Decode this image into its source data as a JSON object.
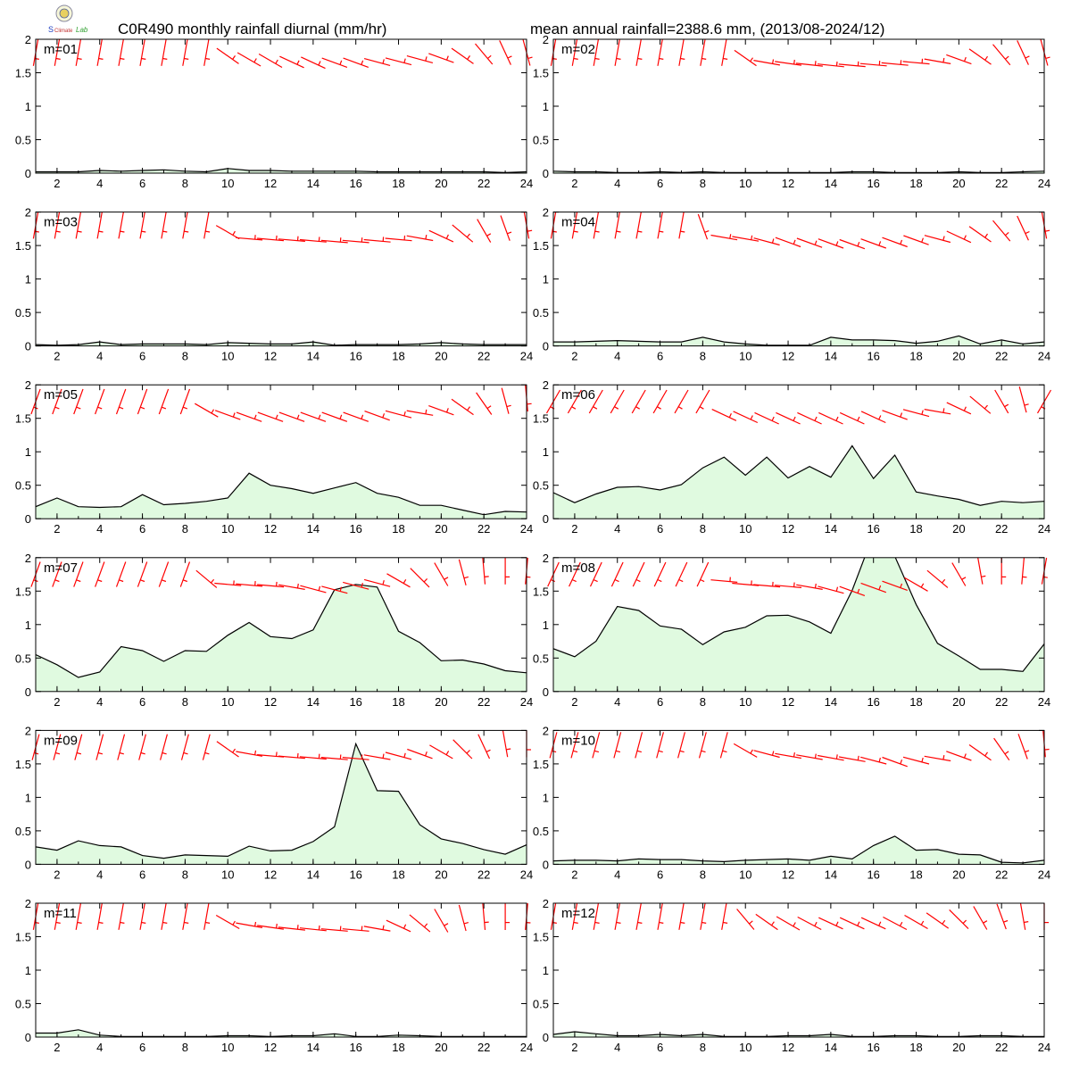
{
  "header": {
    "title_left": "C0R490 monthly rainfall diurnal (mm/hr)",
    "title_right": "mean annual rainfall=2388.6 mm, (2013/08-2024/12)"
  },
  "logo": {
    "icon": "lab-logo-icon",
    "text": "Lab"
  },
  "colors": {
    "area_fill": "#e0fae0",
    "line": "#000000",
    "wind": "#ff0000",
    "frame": "#000000"
  },
  "chart_data": {
    "type": "area",
    "x": [
      1,
      2,
      3,
      4,
      5,
      6,
      7,
      8,
      9,
      10,
      11,
      12,
      13,
      14,
      15,
      16,
      17,
      18,
      19,
      20,
      21,
      22,
      23,
      24
    ],
    "xticks": [
      2,
      4,
      6,
      8,
      10,
      12,
      14,
      16,
      18,
      20,
      22,
      24
    ],
    "xlim": [
      1,
      24
    ],
    "yticks": [
      0,
      0.5,
      1,
      1.5,
      2
    ],
    "ytick_labels": [
      "0",
      "0.5",
      "1",
      "1.5",
      "2"
    ],
    "ylim": [
      0,
      2
    ],
    "grid": false,
    "panels": [
      {
        "label": "m=01",
        "values": [
          0.02,
          0.02,
          0.02,
          0.04,
          0.03,
          0.04,
          0.05,
          0.03,
          0.02,
          0.07,
          0.04,
          0.04,
          0.03,
          0.03,
          0.03,
          0.03,
          0.02,
          0.02,
          0.02,
          0.02,
          0.02,
          0.02,
          0.01,
          0.02
        ],
        "wind_dir": [
          190,
          190,
          190,
          190,
          190,
          190,
          190,
          190,
          190,
          125,
          120,
          120,
          115,
          115,
          110,
          110,
          105,
          105,
          105,
          110,
          125,
          140,
          155,
          165
        ],
        "wind_y": [
          1.8,
          1.8,
          1.8,
          1.8,
          1.8,
          1.8,
          1.8,
          1.8,
          1.8,
          1.75,
          1.7,
          1.68,
          1.66,
          1.65,
          1.65,
          1.65,
          1.66,
          1.67,
          1.7,
          1.72,
          1.75,
          1.78,
          1.8,
          1.8
        ]
      },
      {
        "label": "m=02",
        "values": [
          0.03,
          0.02,
          0.02,
          0.01,
          0.01,
          0.02,
          0.01,
          0.02,
          0.01,
          0.01,
          0.01,
          0.01,
          0.01,
          0.01,
          0.02,
          0.02,
          0.01,
          0.01,
          0.01,
          0.02,
          0.01,
          0.01,
          0.02,
          0.03
        ],
        "wind_dir": [
          190,
          190,
          190,
          190,
          190,
          190,
          190,
          190,
          190,
          125,
          100,
          98,
          96,
          96,
          95,
          95,
          95,
          95,
          100,
          110,
          125,
          140,
          155,
          165
        ],
        "wind_y": [
          1.8,
          1.8,
          1.8,
          1.8,
          1.8,
          1.8,
          1.8,
          1.8,
          1.8,
          1.72,
          1.65,
          1.64,
          1.62,
          1.61,
          1.61,
          1.62,
          1.63,
          1.65,
          1.67,
          1.7,
          1.74,
          1.77,
          1.8,
          1.8
        ]
      },
      {
        "label": "m=03",
        "values": [
          0.02,
          0.01,
          0.02,
          0.06,
          0.02,
          0.03,
          0.03,
          0.03,
          0.02,
          0.05,
          0.04,
          0.03,
          0.03,
          0.06,
          0.01,
          0.02,
          0.02,
          0.02,
          0.03,
          0.05,
          0.03,
          0.02,
          0.02,
          0.02
        ],
        "wind_dir": [
          190,
          190,
          190,
          190,
          190,
          190,
          190,
          190,
          190,
          120,
          95,
          95,
          95,
          95,
          95,
          95,
          95,
          95,
          100,
          115,
          130,
          150,
          160,
          170
        ],
        "wind_y": [
          1.8,
          1.8,
          1.8,
          1.8,
          1.8,
          1.8,
          1.8,
          1.8,
          1.8,
          1.7,
          1.6,
          1.59,
          1.58,
          1.57,
          1.56,
          1.56,
          1.57,
          1.59,
          1.61,
          1.64,
          1.68,
          1.72,
          1.76,
          1.8
        ]
      },
      {
        "label": "m=04",
        "values": [
          0.06,
          0.06,
          0.07,
          0.08,
          0.07,
          0.06,
          0.06,
          0.13,
          0.06,
          0.03,
          0.01,
          0.01,
          0.01,
          0.13,
          0.09,
          0.09,
          0.08,
          0.04,
          0.07,
          0.15,
          0.03,
          0.09,
          0.03,
          0.06
        ],
        "wind_dir": [
          190,
          190,
          190,
          190,
          190,
          190,
          190,
          160,
          100,
          100,
          105,
          110,
          110,
          110,
          110,
          110,
          110,
          110,
          105,
          115,
          125,
          140,
          155,
          170
        ],
        "wind_y": [
          1.8,
          1.8,
          1.8,
          1.8,
          1.8,
          1.8,
          1.8,
          1.78,
          1.62,
          1.6,
          1.56,
          1.55,
          1.54,
          1.53,
          1.52,
          1.53,
          1.55,
          1.58,
          1.6,
          1.63,
          1.67,
          1.72,
          1.76,
          1.8
        ]
      },
      {
        "label": "m=05",
        "values": [
          0.18,
          0.31,
          0.18,
          0.17,
          0.18,
          0.36,
          0.21,
          0.23,
          0.26,
          0.31,
          0.68,
          0.5,
          0.45,
          0.38,
          0.46,
          0.54,
          0.38,
          0.32,
          0.2,
          0.2,
          0.13,
          0.06,
          0.11,
          0.1
        ],
        "wind_dir": [
          200,
          200,
          200,
          200,
          200,
          200,
          200,
          200,
          120,
          110,
          110,
          110,
          110,
          110,
          110,
          110,
          110,
          105,
          100,
          110,
          125,
          145,
          165,
          175
        ],
        "wind_y": [
          1.75,
          1.75,
          1.75,
          1.75,
          1.75,
          1.75,
          1.75,
          1.75,
          1.62,
          1.55,
          1.52,
          1.52,
          1.52,
          1.52,
          1.52,
          1.52,
          1.54,
          1.56,
          1.58,
          1.62,
          1.67,
          1.72,
          1.76,
          1.8
        ]
      },
      {
        "label": "m=06",
        "values": [
          0.39,
          0.24,
          0.37,
          0.47,
          0.48,
          0.43,
          0.51,
          0.76,
          0.92,
          0.65,
          0.92,
          0.61,
          0.78,
          0.62,
          1.09,
          0.6,
          0.95,
          0.4,
          0.34,
          0.29,
          0.2,
          0.26,
          0.24,
          0.26
        ],
        "wind_dir": [
          210,
          210,
          210,
          210,
          210,
          210,
          210,
          210,
          115,
          115,
          115,
          115,
          115,
          115,
          115,
          115,
          110,
          105,
          100,
          115,
          130,
          150,
          165,
          210
        ],
        "wind_y": [
          1.75,
          1.75,
          1.75,
          1.75,
          1.75,
          1.75,
          1.75,
          1.75,
          1.55,
          1.52,
          1.5,
          1.5,
          1.5,
          1.5,
          1.5,
          1.52,
          1.55,
          1.58,
          1.6,
          1.65,
          1.7,
          1.75,
          1.78,
          1.75
        ]
      },
      {
        "label": "m=07",
        "values": [
          0.55,
          0.4,
          0.21,
          0.29,
          0.67,
          0.61,
          0.45,
          0.61,
          0.6,
          0.84,
          1.03,
          0.82,
          0.79,
          0.92,
          1.52,
          1.6,
          1.56,
          0.9,
          0.73,
          0.46,
          0.47,
          0.41,
          0.31,
          0.28
        ],
        "wind_dir": [
          200,
          200,
          200,
          200,
          200,
          200,
          200,
          200,
          130,
          95,
          95,
          95,
          100,
          105,
          105,
          105,
          105,
          120,
          135,
          150,
          165,
          175,
          180,
          185
        ],
        "wind_y": [
          1.75,
          1.75,
          1.75,
          1.75,
          1.75,
          1.75,
          1.75,
          1.75,
          1.68,
          1.6,
          1.59,
          1.58,
          1.56,
          1.53,
          1.52,
          1.58,
          1.62,
          1.66,
          1.7,
          1.75,
          1.78,
          1.8,
          1.8,
          1.8
        ]
      },
      {
        "label": "m=08",
        "values": [
          0.64,
          0.52,
          0.75,
          1.27,
          1.21,
          0.98,
          0.93,
          0.7,
          0.89,
          0.96,
          1.13,
          1.14,
          1.04,
          0.87,
          1.51,
          2.35,
          2.02,
          1.3,
          0.72,
          0.53,
          0.33,
          0.33,
          0.3,
          0.71
        ],
        "wind_dir": [
          205,
          205,
          205,
          205,
          205,
          205,
          205,
          205,
          95,
          95,
          95,
          95,
          100,
          105,
          110,
          110,
          110,
          120,
          130,
          150,
          170,
          180,
          185,
          190
        ],
        "wind_y": [
          1.75,
          1.75,
          1.75,
          1.75,
          1.75,
          1.75,
          1.75,
          1.75,
          1.65,
          1.6,
          1.58,
          1.57,
          1.56,
          1.52,
          1.5,
          1.55,
          1.58,
          1.6,
          1.68,
          1.75,
          1.8,
          1.8,
          1.8,
          1.8
        ]
      },
      {
        "label": "m=09",
        "values": [
          0.26,
          0.21,
          0.35,
          0.28,
          0.26,
          0.13,
          0.09,
          0.14,
          0.13,
          0.12,
          0.27,
          0.2,
          0.21,
          0.34,
          0.56,
          1.8,
          1.1,
          1.09,
          0.59,
          0.38,
          0.31,
          0.22,
          0.15,
          0.29
        ],
        "wind_dir": [
          195,
          195,
          195,
          195,
          195,
          195,
          195,
          195,
          195,
          125,
          100,
          95,
          95,
          95,
          95,
          95,
          100,
          105,
          110,
          120,
          135,
          155,
          170,
          180
        ],
        "wind_y": [
          1.75,
          1.75,
          1.75,
          1.75,
          1.75,
          1.75,
          1.75,
          1.75,
          1.75,
          1.72,
          1.65,
          1.62,
          1.6,
          1.59,
          1.58,
          1.58,
          1.6,
          1.62,
          1.65,
          1.68,
          1.72,
          1.76,
          1.8,
          1.8
        ]
      },
      {
        "label": "m=10",
        "values": [
          0.05,
          0.06,
          0.06,
          0.05,
          0.08,
          0.07,
          0.07,
          0.05,
          0.04,
          0.06,
          0.07,
          0.08,
          0.06,
          0.12,
          0.08,
          0.28,
          0.42,
          0.21,
          0.22,
          0.15,
          0.14,
          0.03,
          0.02,
          0.06
        ],
        "wind_dir": [
          195,
          195,
          195,
          195,
          195,
          195,
          195,
          195,
          195,
          120,
          105,
          100,
          100,
          100,
          100,
          105,
          110,
          105,
          100,
          110,
          125,
          145,
          160,
          175
        ],
        "wind_y": [
          1.78,
          1.78,
          1.78,
          1.78,
          1.78,
          1.78,
          1.78,
          1.78,
          1.78,
          1.7,
          1.65,
          1.62,
          1.6,
          1.59,
          1.57,
          1.55,
          1.53,
          1.55,
          1.58,
          1.62,
          1.67,
          1.72,
          1.76,
          1.8
        ]
      },
      {
        "label": "m=11",
        "values": [
          0.06,
          0.06,
          0.11,
          0.03,
          0.01,
          0.01,
          0.01,
          0.01,
          0.01,
          0.02,
          0.02,
          0.01,
          0.02,
          0.02,
          0.05,
          0.01,
          0.01,
          0.03,
          0.02,
          0.01,
          0.01,
          0.01,
          0.01,
          0.01
        ],
        "wind_dir": [
          190,
          190,
          190,
          190,
          190,
          190,
          190,
          190,
          190,
          120,
          100,
          98,
          96,
          96,
          95,
          95,
          100,
          115,
          130,
          150,
          165,
          175,
          180,
          185
        ],
        "wind_y": [
          1.8,
          1.8,
          1.8,
          1.8,
          1.8,
          1.8,
          1.8,
          1.8,
          1.8,
          1.72,
          1.67,
          1.64,
          1.62,
          1.61,
          1.6,
          1.6,
          1.62,
          1.66,
          1.7,
          1.74,
          1.78,
          1.8,
          1.8,
          1.8
        ]
      },
      {
        "label": "m=12",
        "values": [
          0.04,
          0.08,
          0.05,
          0.02,
          0.02,
          0.04,
          0.02,
          0.04,
          0.01,
          0.01,
          0.01,
          0.02,
          0.02,
          0.04,
          0.01,
          0.01,
          0.02,
          0.02,
          0.01,
          0.01,
          0.02,
          0.02,
          0.01,
          0.01
        ],
        "wind_dir": [
          190,
          190,
          190,
          190,
          190,
          190,
          190,
          190,
          190,
          140,
          125,
          120,
          118,
          115,
          115,
          115,
          118,
          120,
          125,
          135,
          150,
          160,
          170,
          180
        ],
        "wind_y": [
          1.8,
          1.8,
          1.8,
          1.8,
          1.8,
          1.8,
          1.8,
          1.8,
          1.8,
          1.76,
          1.72,
          1.7,
          1.7,
          1.7,
          1.7,
          1.7,
          1.7,
          1.72,
          1.74,
          1.76,
          1.78,
          1.8,
          1.8,
          1.8
        ]
      }
    ]
  }
}
